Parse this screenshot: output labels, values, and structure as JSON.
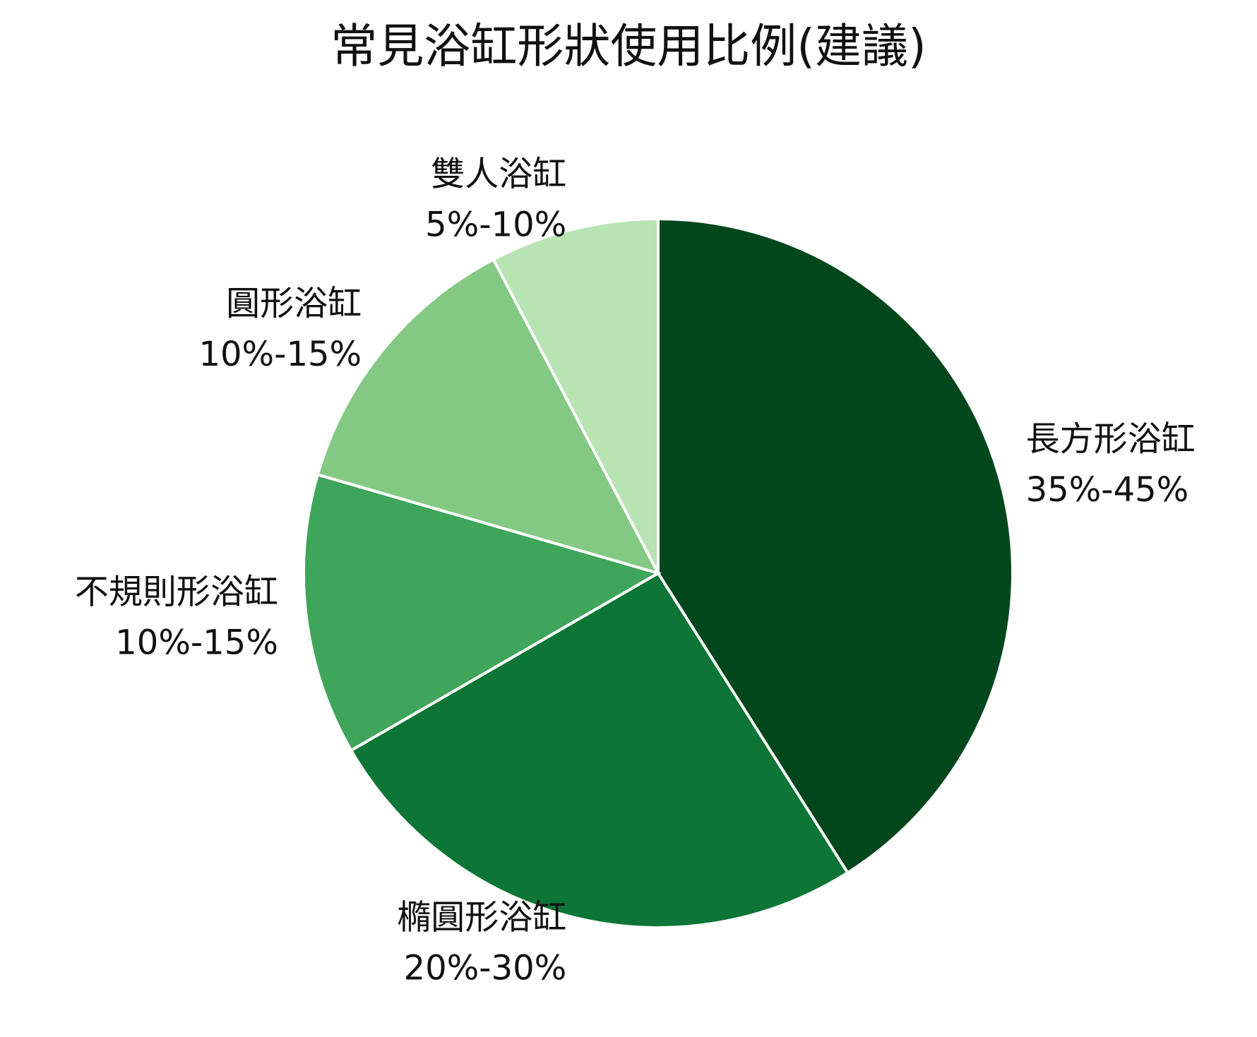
{
  "chart_data": {
    "type": "pie",
    "title": "常見浴缸形狀使用比例(建議)",
    "categories": [
      "長方形浴缸",
      "橢圓形浴缸",
      "不規則形浴缸",
      "圓形浴缸",
      "雙人浴缸"
    ],
    "values": [
      40,
      25,
      12.5,
      12.5,
      7.5
    ],
    "value_labels": [
      "35%-45%",
      "20%-30%",
      "10%-15%",
      "10%-15%",
      "5%-10%"
    ],
    "colors": [
      "#00471b",
      "#0d7535",
      "#3ea55b",
      "#83c983",
      "#b8e3b2"
    ]
  }
}
